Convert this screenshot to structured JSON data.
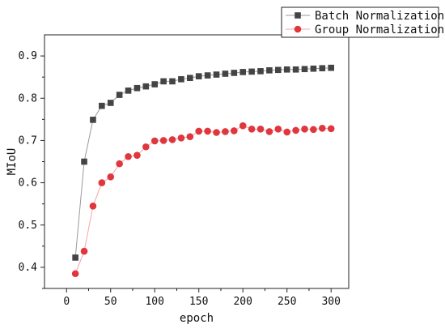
{
  "chart_data": {
    "type": "line",
    "xlabel": "epoch",
    "ylabel": "MIoU",
    "xlim": [
      -25,
      320
    ],
    "ylim": [
      0.35,
      0.95
    ],
    "xticks": [
      0,
      50,
      100,
      150,
      200,
      250,
      300
    ],
    "yticks": [
      0.4,
      0.5,
      0.6,
      0.7,
      0.8,
      0.9
    ],
    "xtick_labels": [
      "0",
      "50",
      "100",
      "150",
      "200",
      "250",
      "300"
    ],
    "ytick_labels": [
      "0.4",
      "0.5",
      "0.6",
      "0.7",
      "0.8",
      "0.9"
    ],
    "grid": false,
    "legend_position": "top-right-outside",
    "x": [
      10,
      20,
      30,
      40,
      50,
      60,
      70,
      80,
      90,
      100,
      110,
      120,
      130,
      140,
      150,
      160,
      170,
      180,
      190,
      200,
      210,
      220,
      230,
      240,
      250,
      260,
      270,
      280,
      290,
      300
    ],
    "series": [
      {
        "name": "Batch Normalization",
        "marker": "square",
        "color": "#444444",
        "line_color": "#9a9a9a",
        "values": [
          0.423,
          0.65,
          0.749,
          0.782,
          0.789,
          0.808,
          0.818,
          0.824,
          0.828,
          0.833,
          0.84,
          0.84,
          0.845,
          0.848,
          0.852,
          0.854,
          0.856,
          0.858,
          0.86,
          0.862,
          0.863,
          0.864,
          0.866,
          0.867,
          0.868,
          0.868,
          0.869,
          0.87,
          0.871,
          0.872
        ]
      },
      {
        "name": "Group Normalization",
        "marker": "circle",
        "color": "#e0363d",
        "line_color": "#f2a6a8",
        "values": [
          0.385,
          0.438,
          0.545,
          0.6,
          0.614,
          0.645,
          0.662,
          0.665,
          0.685,
          0.699,
          0.7,
          0.702,
          0.706,
          0.709,
          0.722,
          0.722,
          0.719,
          0.721,
          0.723,
          0.735,
          0.727,
          0.727,
          0.721,
          0.727,
          0.72,
          0.724,
          0.727,
          0.726,
          0.729,
          0.728
        ]
      }
    ]
  }
}
